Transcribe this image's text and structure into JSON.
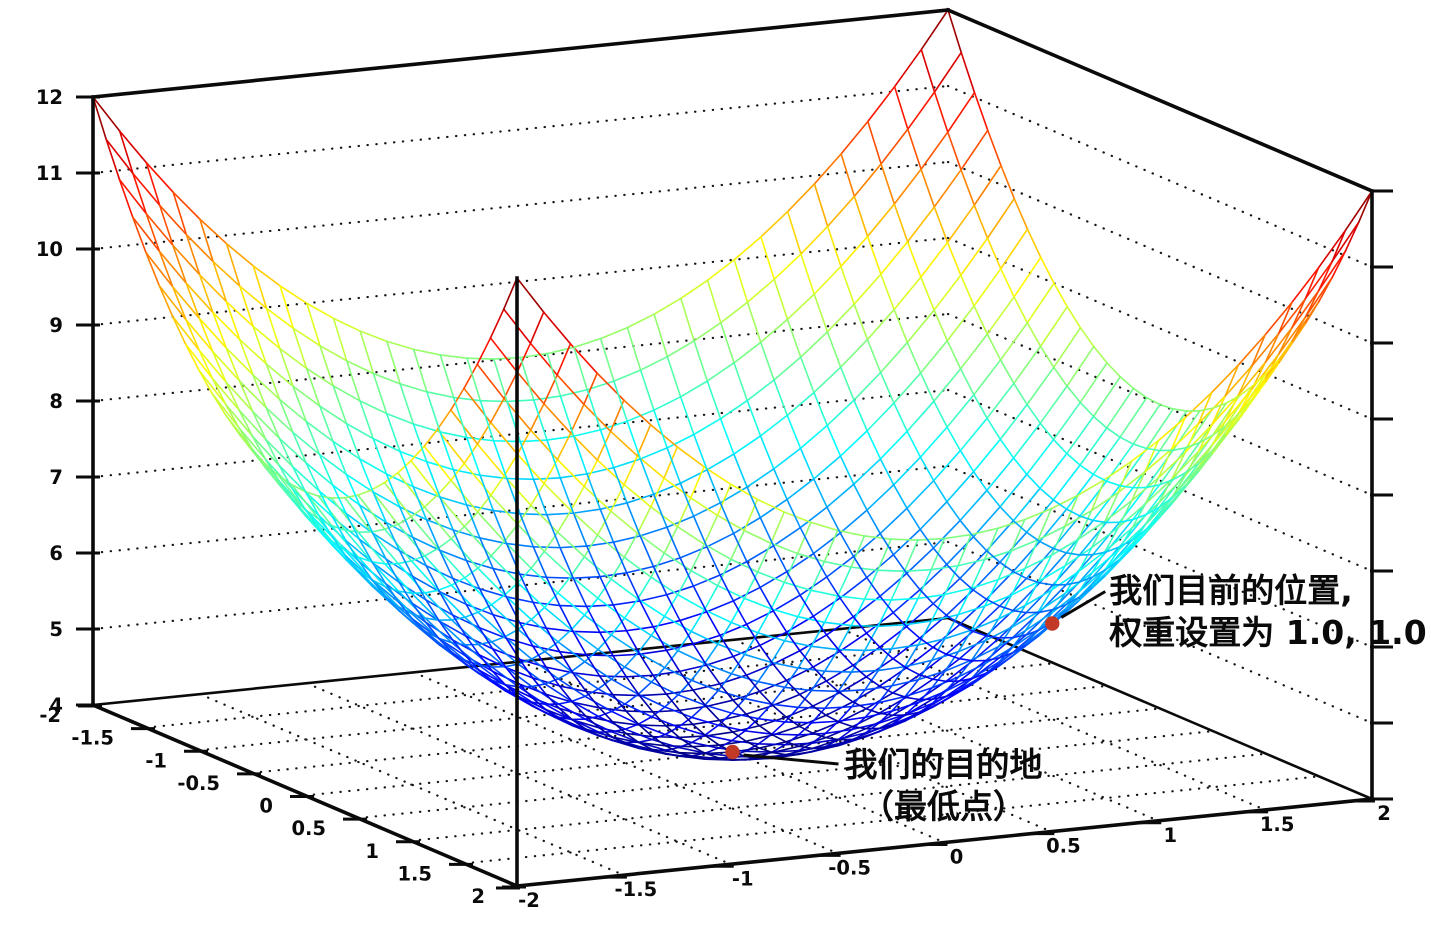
{
  "chart_data": {
    "type": "3d-surface-wireframe",
    "title": "",
    "surface": {
      "formula": "z = x^2 + y^2 + 4",
      "offset": 4
    },
    "x_range": [
      -2,
      2
    ],
    "y_range": [
      -2,
      2
    ],
    "z_range": [
      4,
      12
    ],
    "mesh_step": 0.125,
    "colormap": "jet",
    "grid_style": "dotted",
    "x_ticks": {
      "values": [
        -2,
        -1.5,
        -1,
        -0.5,
        0,
        0.5,
        1,
        1.5,
        2
      ],
      "labels": [
        "-2",
        "-1.5",
        "-1",
        "-0.5",
        "0",
        "0.5",
        "1",
        "1.5",
        "2"
      ]
    },
    "y_ticks": {
      "values": [
        -2,
        -1.5,
        -1,
        -0.5,
        0,
        0.5,
        1,
        1.5,
        2
      ],
      "labels": [
        "-2",
        "-1.5",
        "-1",
        "-0.5",
        "0",
        "0.5",
        "1",
        "1.5",
        "2"
      ]
    },
    "z_ticks": {
      "values": [
        4,
        5,
        6,
        7,
        8,
        9,
        10,
        11,
        12
      ],
      "labels": [
        "4",
        "5",
        "6",
        "7",
        "8",
        "9",
        "10",
        "11",
        "12"
      ]
    },
    "marker_color": "#c23a26",
    "annotations": [
      {
        "id": "current-position",
        "point": {
          "x": 1.0,
          "y": 1.0,
          "z": 6.0
        },
        "lines": [
          "我们目前的位置,",
          "权重设置为 1.0, 1.0"
        ]
      },
      {
        "id": "destination",
        "point": {
          "x": 0.0,
          "y": 0.0,
          "z": 4.0
        },
        "lines": [
          "我们的目的地",
          "（最低点）"
        ]
      }
    ]
  }
}
